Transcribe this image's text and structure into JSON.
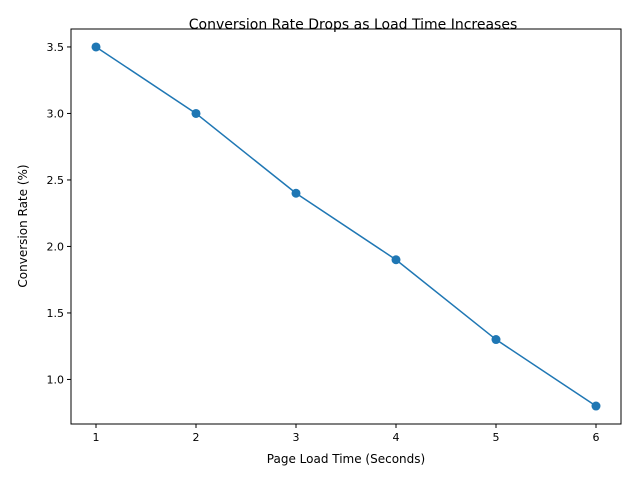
{
  "chart_data": {
    "type": "line",
    "title": "Conversion Rate Drops as Load Time Increases",
    "xlabel": "Page Load Time (Seconds)",
    "ylabel": "Conversion Rate (%)",
    "x": [
      1,
      2,
      3,
      4,
      5,
      6
    ],
    "series": [
      {
        "values": [
          3.5,
          3.0,
          2.4,
          1.9,
          1.3,
          0.8
        ],
        "color": "#1f77b4",
        "marker": "circle"
      }
    ],
    "xlim": [
      0.75,
      6.25
    ],
    "ylim": [
      0.665,
      3.635
    ],
    "xticks": [
      1,
      2,
      3,
      4,
      5,
      6
    ],
    "xtick_labels": [
      "1",
      "2",
      "3",
      "4",
      "5",
      "6"
    ],
    "yticks": [
      1.0,
      1.5,
      2.0,
      2.5,
      3.0,
      3.5
    ],
    "ytick_labels": [
      "1.0",
      "1.5",
      "2.0",
      "2.5",
      "3.0",
      "3.5"
    ],
    "grid": false,
    "legend": "none"
  }
}
